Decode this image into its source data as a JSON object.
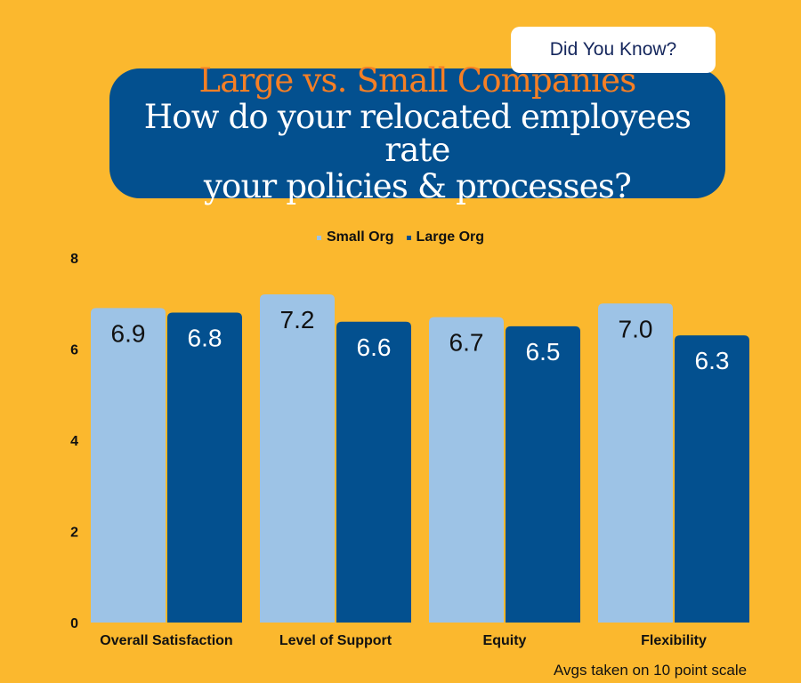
{
  "badge": "Did You Know?",
  "title_line1": "Large vs. Small Companies",
  "title_line2": "How do your relocated employees rate",
  "title_line3": "your policies & processes?",
  "footnote": "Avgs taken on 10 point scale",
  "colors": {
    "background": "#FBB82E",
    "small_org": "#9DC3E6",
    "large_org": "#03508F",
    "title_box": "#03508F",
    "title_accent": "#F57F25"
  },
  "chart_data": {
    "type": "bar",
    "categories": [
      "Overall Satisfaction",
      "Level of Support",
      "Equity",
      "Flexibility"
    ],
    "series": [
      {
        "name": "Small Org",
        "values": [
          6.9,
          7.2,
          6.7,
          7.0
        ],
        "labels": [
          "6.9",
          "7.2",
          "6.7",
          "7.0"
        ]
      },
      {
        "name": "Large Org",
        "values": [
          6.8,
          6.6,
          6.5,
          6.3
        ],
        "labels": [
          "6.8",
          "6.6",
          "6.5",
          "6.3"
        ]
      }
    ],
    "yticks": [
      "0",
      "2",
      "4",
      "6",
      "8"
    ],
    "ylim": [
      0,
      8
    ],
    "legend_position": "top-center"
  }
}
